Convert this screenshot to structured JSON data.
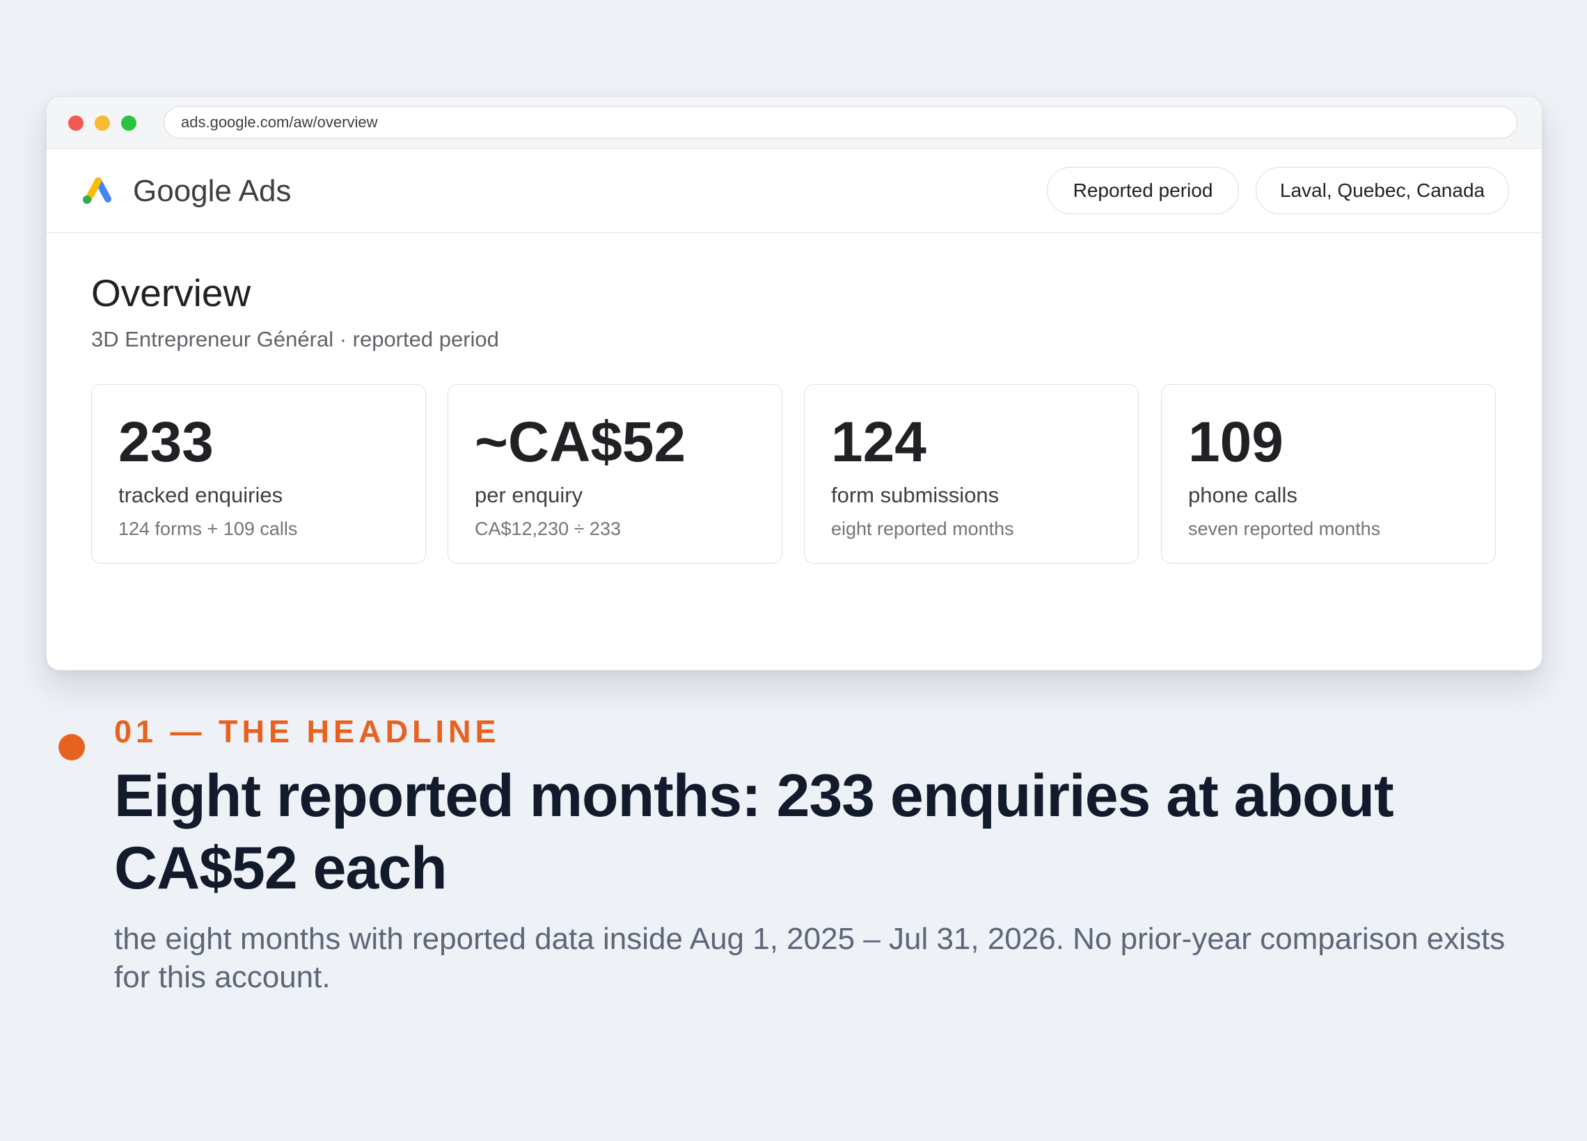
{
  "browser": {
    "url": "ads.google.com/aw/overview"
  },
  "appbar": {
    "brand": "Google Ads",
    "logo_icon": "google-ads-logo",
    "period_chip": "Reported period",
    "location_chip": "Laval, Quebec, Canada"
  },
  "overview": {
    "title": "Overview",
    "subtitle": "3D Entrepreneur Général · reported period",
    "cards": [
      {
        "value": "233",
        "label": "tracked enquiries",
        "note": "124 forms + 109 calls"
      },
      {
        "value": "~CA$52",
        "label": "per enquiry",
        "note": "CA$12,230 ÷ 233"
      },
      {
        "value": "124",
        "label": "form submissions",
        "note": "eight reported months"
      },
      {
        "value": "109",
        "label": "phone calls",
        "note": "seven reported months"
      }
    ]
  },
  "caption": {
    "eyebrow": "01 — THE HEADLINE",
    "headline": "Eight reported months: 233 enquiries at about CA$52 each",
    "description": "the eight months with reported data inside Aug 1, 2025 – Jul 31, 2026. No prior-year comparison exists for this account.",
    "accent_color": "#e8621f"
  }
}
